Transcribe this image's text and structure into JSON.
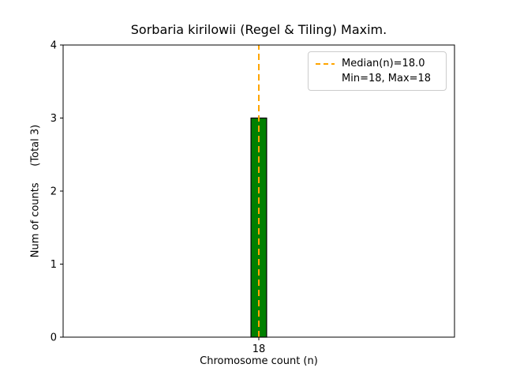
{
  "figure": {
    "background": "#ffffff"
  },
  "chart_data": {
    "type": "bar",
    "title": "Sorbaria kirilowii (Regel & Tiling) Maxim.",
    "xlabel": "Chromosome count (n)",
    "ylabel": "Num of counts     (Total 3)",
    "x": [
      18
    ],
    "values": [
      3
    ],
    "categories": [
      "18"
    ],
    "xlim": [
      17.5,
      18.5
    ],
    "ylim": [
      0,
      4
    ],
    "xticks": [
      18
    ],
    "yticks": [
      0,
      1,
      2,
      3,
      4
    ],
    "bar_width": 0.04,
    "bar_color": "#008000",
    "bar_edge_color": "#000000",
    "median": 18.0,
    "median_line_color": "#FFA500",
    "grid": false,
    "legend": {
      "position": "upper right",
      "entries": [
        {
          "label": "Median(n)=18.0",
          "color": "#FFA500",
          "style": "dashed"
        },
        {
          "label": "Min=18, Max=18",
          "color": null,
          "style": "none"
        }
      ]
    }
  }
}
